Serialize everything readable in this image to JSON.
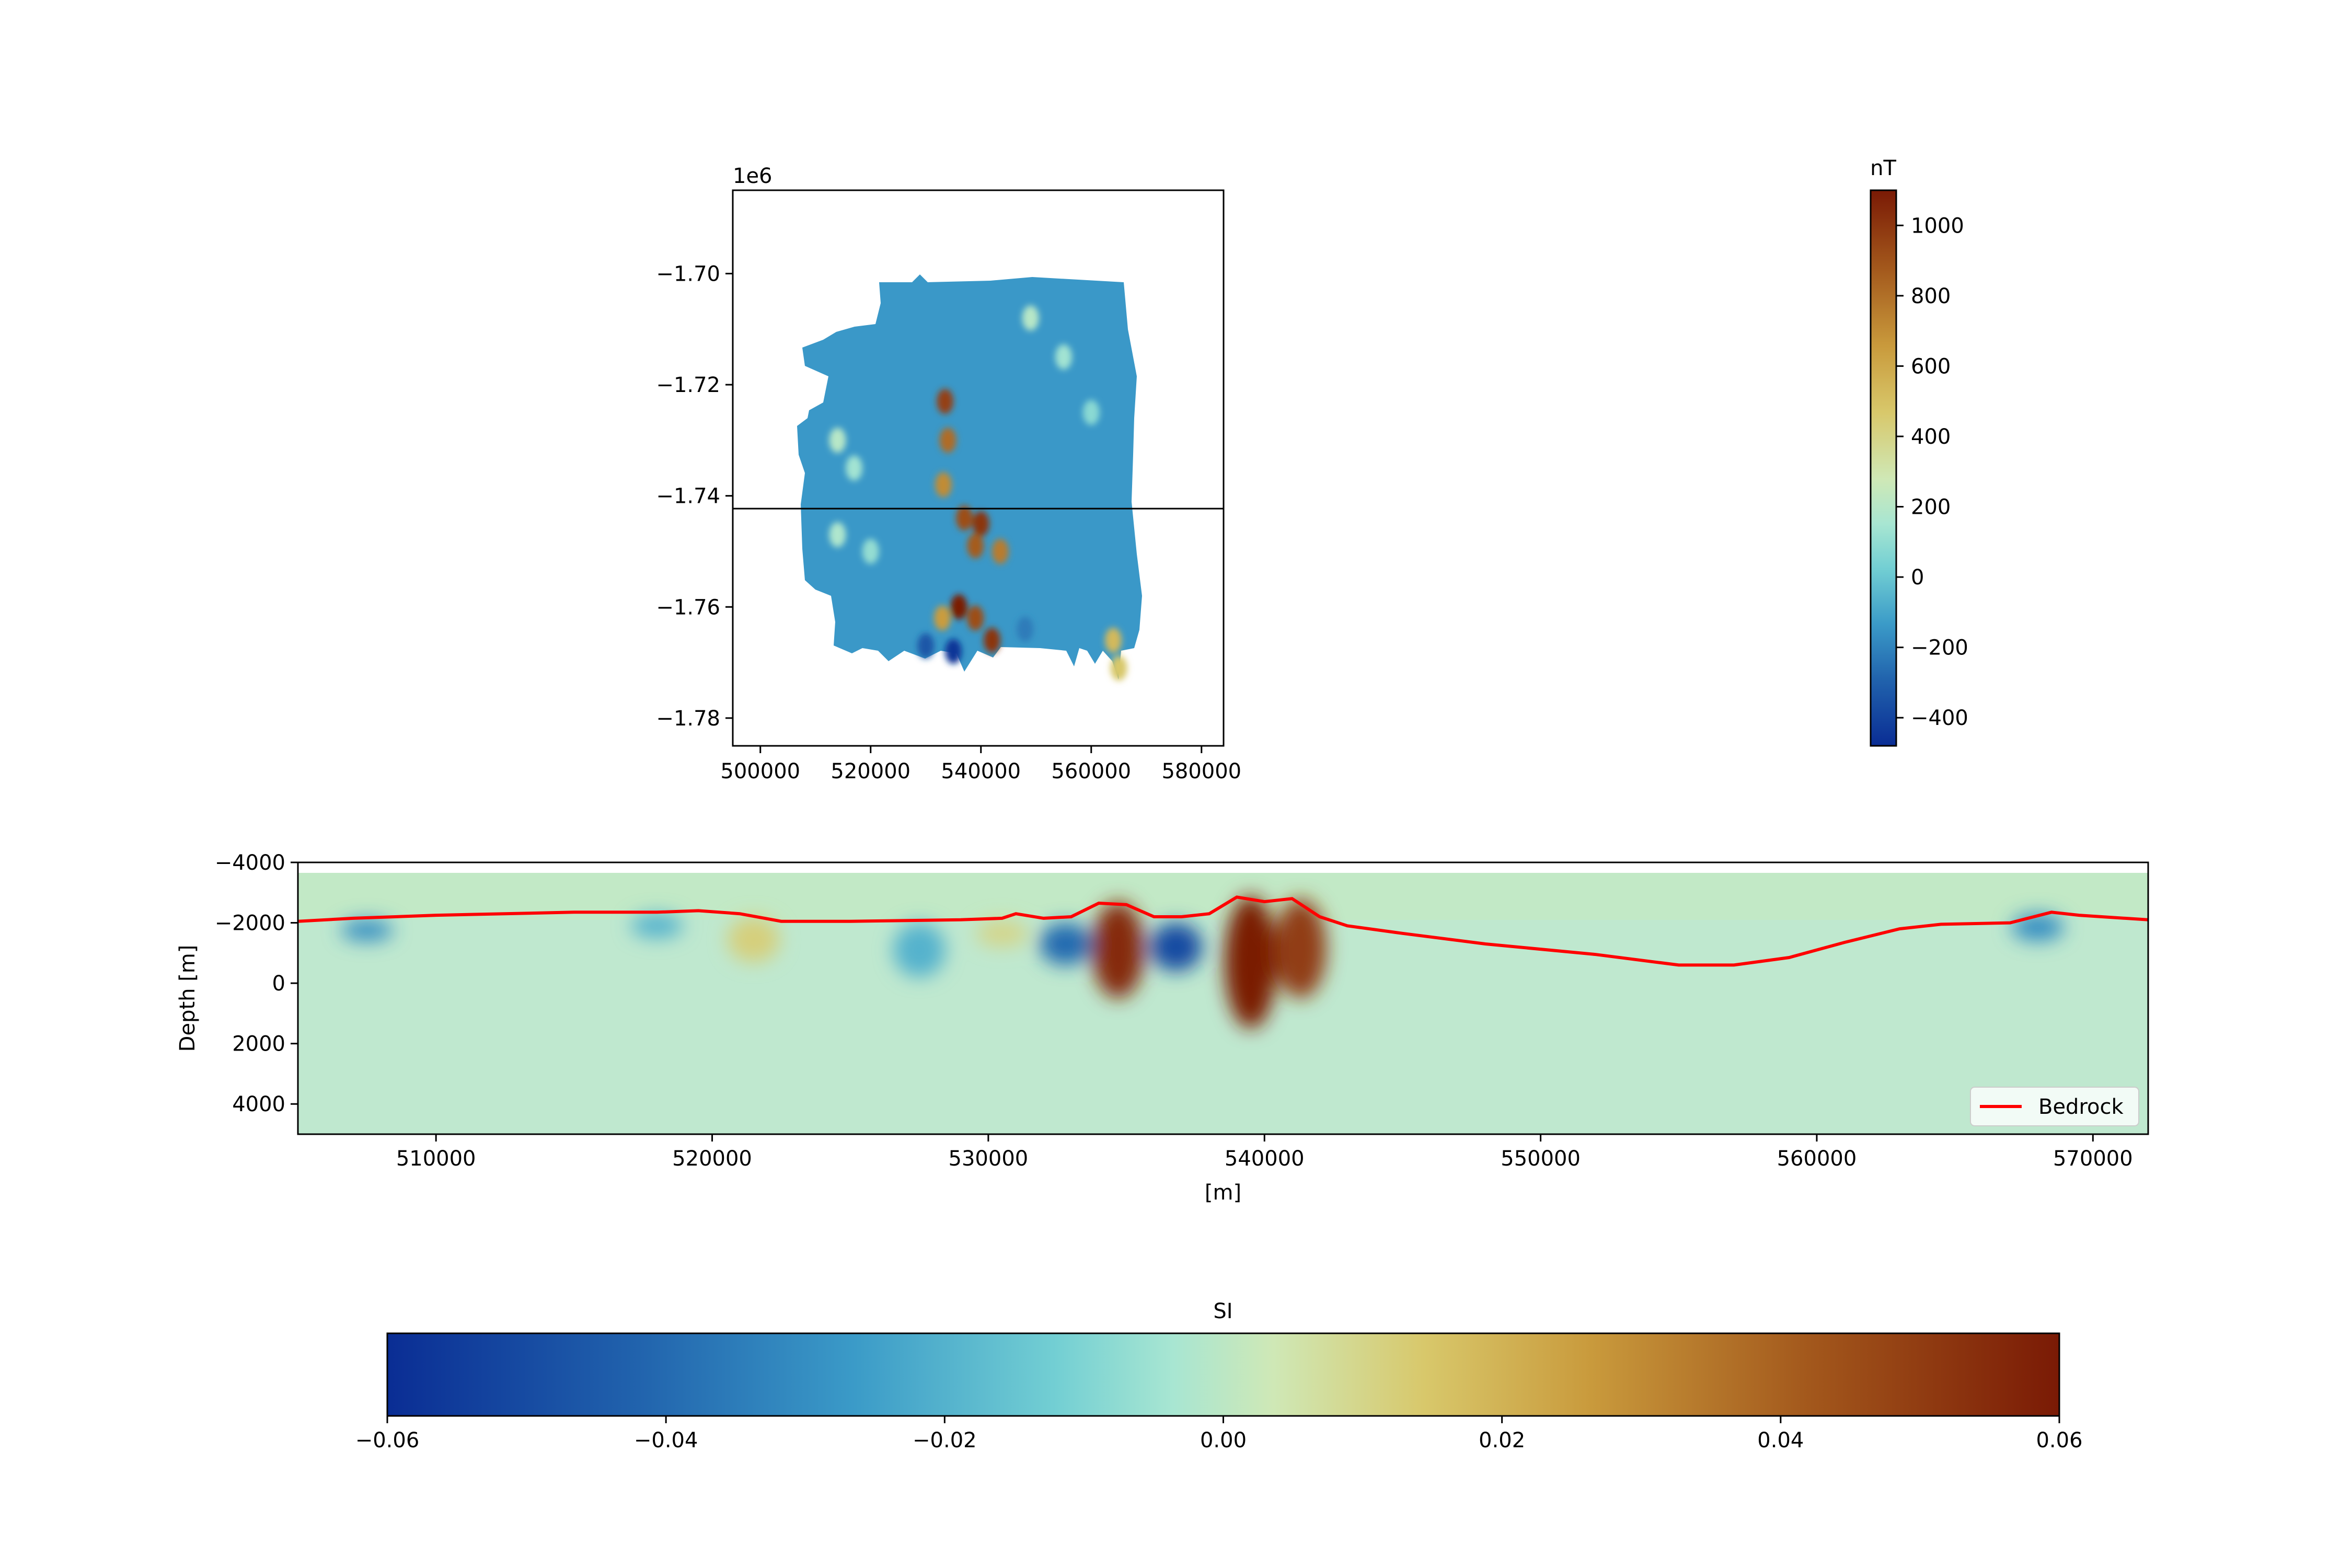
{
  "chart_data": [
    {
      "type": "heatmap",
      "panel": "map",
      "offset_label": "1e6",
      "xlim": [
        495000,
        584000
      ],
      "ylim": [
        -1.785,
        -1.685
      ],
      "x_ticks": [
        {
          "v": 500000,
          "t": "500000"
        },
        {
          "v": 520000,
          "t": "520000"
        },
        {
          "v": 540000,
          "t": "540000"
        },
        {
          "v": 560000,
          "t": "560000"
        },
        {
          "v": 580000,
          "t": "580000"
        }
      ],
      "y_ticks": [
        {
          "v": -1.7,
          "t": "−1.70"
        },
        {
          "v": -1.72,
          "t": "−1.72"
        },
        {
          "v": -1.74,
          "t": "−1.74"
        },
        {
          "v": -1.76,
          "t": "−1.76"
        },
        {
          "v": -1.78,
          "t": "−1.78"
        }
      ],
      "section_line_y": -1.7423,
      "colorbar": {
        "label": "nT",
        "range": [
          -480,
          1100
        ],
        "ticks": [
          {
            "v": 1000,
            "t": "1000"
          },
          {
            "v": 800,
            "t": "800"
          },
          {
            "v": 600,
            "t": "600"
          },
          {
            "v": 400,
            "t": "400"
          },
          {
            "v": 200,
            "t": "200"
          },
          {
            "v": 0,
            "t": "0"
          },
          {
            "v": -200,
            "t": "−200"
          },
          {
            "v": -400,
            "t": "−400"
          }
        ]
      },
      "anomalies": [
        {
          "x": 533500,
          "y": -1.723,
          "value": 950
        },
        {
          "x": 534000,
          "y": -1.73,
          "value": 800
        },
        {
          "x": 533200,
          "y": -1.738,
          "value": 700
        },
        {
          "x": 537000,
          "y": -1.744,
          "value": 900
        },
        {
          "x": 540000,
          "y": -1.745,
          "value": 1000
        },
        {
          "x": 539000,
          "y": -1.749,
          "value": 850
        },
        {
          "x": 543500,
          "y": -1.75,
          "value": 750
        },
        {
          "x": 536000,
          "y": -1.76,
          "value": 1100
        },
        {
          "x": 533000,
          "y": -1.762,
          "value": 650
        },
        {
          "x": 539000,
          "y": -1.762,
          "value": 900
        },
        {
          "x": 542000,
          "y": -1.766,
          "value": 1000
        },
        {
          "x": 564000,
          "y": -1.766,
          "value": 550
        },
        {
          "x": 565000,
          "y": -1.771,
          "value": 500
        },
        {
          "x": 514000,
          "y": -1.73,
          "value": 300
        },
        {
          "x": 517000,
          "y": -1.735,
          "value": 250
        },
        {
          "x": 549000,
          "y": -1.708,
          "value": 300
        },
        {
          "x": 555000,
          "y": -1.715,
          "value": 250
        },
        {
          "x": 560000,
          "y": -1.725,
          "value": 200
        },
        {
          "x": 514000,
          "y": -1.747,
          "value": 280
        },
        {
          "x": 520000,
          "y": -1.75,
          "value": 220
        },
        {
          "x": 535000,
          "y": -1.768,
          "value": -450
        },
        {
          "x": 530000,
          "y": -1.767,
          "value": -300
        },
        {
          "x": 548000,
          "y": -1.764,
          "value": -150
        }
      ]
    },
    {
      "type": "heatmap",
      "panel": "section",
      "xlabel": "[m]",
      "ylabel": "Depth [m]",
      "xlim": [
        505000,
        572000
      ],
      "ylim": [
        -4000,
        5000
      ],
      "x_ticks": [
        {
          "v": 510000,
          "t": "510000"
        },
        {
          "v": 520000,
          "t": "520000"
        },
        {
          "v": 530000,
          "t": "530000"
        },
        {
          "v": 540000,
          "t": "540000"
        },
        {
          "v": 550000,
          "t": "550000"
        },
        {
          "v": 560000,
          "t": "560000"
        },
        {
          "v": 570000,
          "t": "570000"
        }
      ],
      "y_ticks": [
        {
          "v": -4000,
          "t": "−4000"
        },
        {
          "v": -2000,
          "t": "−2000"
        },
        {
          "v": 0,
          "t": "0"
        },
        {
          "v": 2000,
          "t": "2000"
        },
        {
          "v": 4000,
          "t": "4000"
        }
      ],
      "legend": {
        "label": "Bedrock",
        "color": "#ff0000",
        "loc": "lower right"
      },
      "bedrock": {
        "x": [
          505000,
          507000,
          510000,
          515000,
          518000,
          519500,
          521000,
          522500,
          525000,
          529000,
          530500,
          531000,
          532000,
          533000,
          534000,
          535000,
          536000,
          537000,
          538000,
          539000,
          540000,
          541000,
          542000,
          543000,
          545000,
          548000,
          552000,
          555000,
          557000,
          559000,
          561000,
          563000,
          564500,
          567000,
          568500,
          569500,
          572000
        ],
        "y": [
          -2050,
          -2150,
          -2250,
          -2350,
          -2350,
          -2400,
          -2300,
          -2050,
          -2050,
          -2100,
          -2150,
          -2300,
          -2150,
          -2200,
          -2650,
          -2600,
          -2200,
          -2200,
          -2300,
          -2850,
          -2700,
          -2800,
          -2200,
          -1900,
          -1650,
          -1300,
          -950,
          -600,
          -600,
          -850,
          -1350,
          -1800,
          -1950,
          -2000,
          -2350,
          -2250,
          -2100
        ]
      },
      "anomalies": [
        {
          "x": 534700,
          "top": -2700,
          "bottom": 500,
          "value": 0.055
        },
        {
          "x": 539500,
          "top": -2900,
          "bottom": 1500,
          "value": 0.06
        },
        {
          "x": 541300,
          "top": -2800,
          "bottom": 500,
          "value": 0.05
        },
        {
          "x": 532800,
          "top": -2000,
          "bottom": -600,
          "value": -0.04
        },
        {
          "x": 536800,
          "top": -2000,
          "bottom": -400,
          "value": -0.05
        },
        {
          "x": 507500,
          "top": -2100,
          "bottom": -1400,
          "value": -0.03
        },
        {
          "x": 518000,
          "top": -2300,
          "bottom": -1500,
          "value": -0.02
        },
        {
          "x": 521500,
          "top": -2200,
          "bottom": -700,
          "value": 0.012
        },
        {
          "x": 527500,
          "top": -2000,
          "bottom": -200,
          "value": -0.02
        },
        {
          "x": 530500,
          "top": -2100,
          "bottom": -1200,
          "value": 0.01
        },
        {
          "x": 568000,
          "top": -2300,
          "bottom": -1400,
          "value": -0.03
        }
      ],
      "colorbar": {
        "label": "SI",
        "range": [
          -0.06,
          0.06
        ],
        "ticks": [
          {
            "v": -0.06,
            "t": "−0.06"
          },
          {
            "v": -0.04,
            "t": "−0.04"
          },
          {
            "v": -0.02,
            "t": "−0.02"
          },
          {
            "v": 0.0,
            "t": "0.00"
          },
          {
            "v": 0.02,
            "t": "0.02"
          },
          {
            "v": 0.04,
            "t": "0.04"
          },
          {
            "v": 0.06,
            "t": "0.06"
          }
        ]
      }
    }
  ]
}
